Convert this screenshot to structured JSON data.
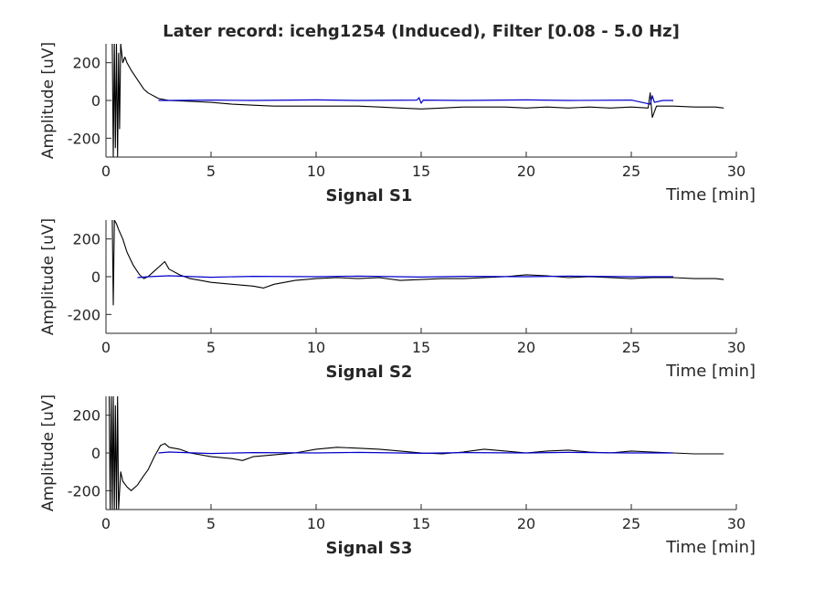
{
  "chart_data": {
    "type": "line",
    "title": "Later record: icehg1254 (Induced), Filter [0.08 - 5.0 Hz]",
    "colors": {
      "raw": "#000000",
      "filtered": "#0000cc",
      "axis": "#262626"
    },
    "panels": [
      {
        "name": "Signal S1",
        "xlabel": "Time [min]",
        "ylabel": "Amplitude [uV]",
        "xlim": [
          0,
          30
        ],
        "ylim": [
          -300,
          300
        ],
        "xticks": [
          0,
          5,
          10,
          15,
          20,
          25,
          30
        ],
        "yticks": [
          200,
          0,
          -200
        ],
        "grid": false,
        "series": [
          {
            "x": [
              0.3,
              0.35,
              0.4,
              0.45,
              0.5,
              0.55,
              0.6,
              0.65,
              0.7,
              0.8,
              0.9,
              1.0,
              1.2,
              1.5,
              1.8,
              2.0,
              2.5,
              3,
              4,
              5,
              6,
              7,
              8,
              9,
              10,
              11,
              12,
              13,
              14,
              15,
              16,
              17,
              18,
              19,
              20,
              21,
              22,
              23,
              24,
              25,
              25.8,
              25.9,
              26,
              26.2,
              27,
              28,
              29,
              29.4
            ],
            "y": [
              300,
              -300,
              300,
              -250,
              300,
              -300,
              250,
              -150,
              300,
              200,
              230,
              200,
              160,
              110,
              60,
              40,
              10,
              0,
              -5,
              -10,
              -20,
              -25,
              -30,
              -30,
              -30,
              -30,
              -30,
              -35,
              -40,
              -45,
              -40,
              -35,
              -35,
              -35,
              -40,
              -35,
              -40,
              -35,
              -40,
              -35,
              -40,
              40,
              -90,
              -30,
              -30,
              -35,
              -35,
              -40
            ]
          },
          {
            "x": [
              2.5,
              3,
              5,
              7,
              10,
              12,
              14.8,
              14.9,
              15,
              15.1,
              17,
              20,
              22,
              25,
              25.9,
              26,
              26.1,
              26.5,
              27
            ],
            "y": [
              0,
              0,
              2,
              0,
              3,
              0,
              2,
              15,
              -15,
              2,
              0,
              3,
              0,
              2,
              -20,
              25,
              -10,
              0,
              0
            ]
          }
        ]
      },
      {
        "name": "Signal S2",
        "xlabel": "Time [min]",
        "ylabel": "Amplitude [uV]",
        "xlim": [
          0,
          30
        ],
        "ylim": [
          -300,
          300
        ],
        "xticks": [
          0,
          5,
          10,
          15,
          20,
          25,
          30
        ],
        "yticks": [
          200,
          0,
          -200
        ],
        "grid": false,
        "series": [
          {
            "x": [
              0.3,
              0.35,
              0.4,
              0.5,
              0.6,
              0.8,
              1.0,
              1.3,
              1.6,
              1.8,
              2.0,
              2.3,
              2.6,
              2.8,
              3.0,
              3.5,
              4,
              4.5,
              5,
              6,
              7,
              7.5,
              8,
              9,
              10,
              11,
              12,
              13,
              14,
              15,
              16,
              17,
              18,
              19,
              20,
              21,
              22,
              23,
              24,
              25,
              26,
              27,
              28,
              29,
              29.4
            ],
            "y": [
              300,
              -150,
              300,
              280,
              250,
              200,
              130,
              60,
              10,
              -10,
              0,
              30,
              60,
              80,
              40,
              10,
              -10,
              -20,
              -30,
              -40,
              -50,
              -60,
              -40,
              -20,
              -10,
              -5,
              -10,
              -5,
              -20,
              -15,
              -10,
              -10,
              -5,
              0,
              10,
              5,
              -5,
              0,
              -5,
              -10,
              -5,
              -5,
              -10,
              -10,
              -15
            ]
          },
          {
            "x": [
              1.5,
              2,
              3,
              5,
              7,
              10,
              12,
              15,
              17,
              20,
              22,
              25,
              27
            ],
            "y": [
              -5,
              0,
              5,
              -3,
              2,
              0,
              3,
              -2,
              2,
              0,
              3,
              0,
              0
            ]
          }
        ]
      },
      {
        "name": "Signal S3",
        "xlabel": "Time [min]",
        "ylabel": "Amplitude [uV]",
        "xlim": [
          0,
          30
        ],
        "ylim": [
          -300,
          300
        ],
        "xticks": [
          0,
          5,
          10,
          15,
          20,
          25,
          30
        ],
        "yticks": [
          200,
          0,
          -200
        ],
        "grid": false,
        "series": [
          {
            "x": [
              0.15,
              0.2,
              0.25,
              0.3,
              0.35,
              0.4,
              0.45,
              0.5,
              0.55,
              0.6,
              0.7,
              0.8,
              1.0,
              1.2,
              1.5,
              1.8,
              2.0,
              2.3,
              2.6,
              2.8,
              3.0,
              3.5,
              4,
              5,
              6,
              6.5,
              7,
              8,
              9,
              10,
              11,
              12,
              13,
              14,
              15,
              16,
              17,
              18,
              19,
              20,
              21,
              22,
              23,
              24,
              25,
              26,
              27,
              28,
              29,
              29.4
            ],
            "y": [
              300,
              -300,
              300,
              -300,
              300,
              -300,
              250,
              -300,
              300,
              -300,
              -100,
              -150,
              -180,
              -200,
              -170,
              -120,
              -90,
              -20,
              40,
              50,
              30,
              20,
              0,
              -20,
              -30,
              -40,
              -20,
              -10,
              0,
              20,
              30,
              25,
              20,
              10,
              0,
              -5,
              5,
              20,
              10,
              0,
              10,
              15,
              5,
              0,
              10,
              5,
              0,
              -5,
              -5,
              -5
            ]
          },
          {
            "x": [
              2.5,
              3,
              5,
              7,
              10,
              12,
              15,
              17,
              20,
              22,
              25,
              27
            ],
            "y": [
              0,
              5,
              -3,
              2,
              0,
              3,
              -2,
              2,
              0,
              3,
              0,
              0
            ]
          }
        ]
      }
    ]
  }
}
